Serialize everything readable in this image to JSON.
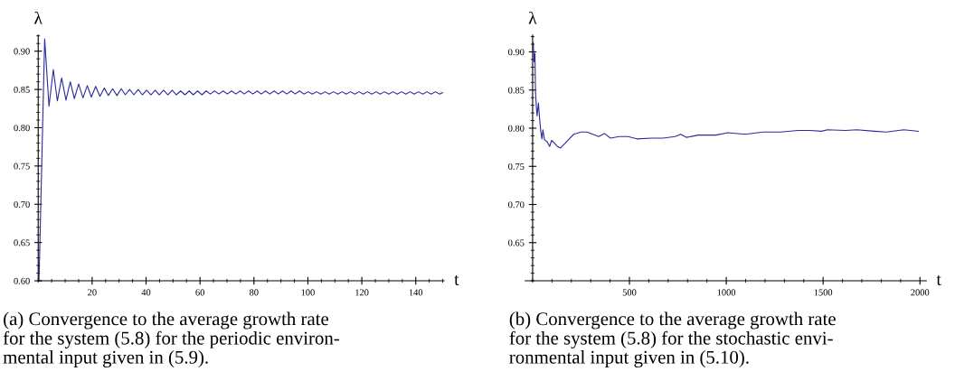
{
  "chart_data": [
    {
      "type": "line",
      "xlabel": "t",
      "ylabel": "λ",
      "xlim": [
        0,
        150.5
      ],
      "ylim": [
        0.6,
        0.921
      ],
      "xticks": [
        20,
        40,
        60,
        80,
        100,
        120,
        140
      ],
      "yticks": [
        {
          "value": 0.6,
          "label": "0.60"
        },
        0.65,
        {
          "value": 0.7,
          "label": "0.70"
        },
        0.75,
        {
          "value": 0.8,
          "label": "0.80"
        },
        0.85,
        {
          "value": 0.9,
          "label": "0.90"
        }
      ],
      "grid": false,
      "legend": false,
      "x": [
        0.3,
        2.4,
        4.0,
        5.6,
        7.1,
        8.7,
        10.3,
        11.9,
        13.4,
        15.0,
        16.6,
        18.2,
        19.7,
        21.3,
        22.9,
        24.5,
        26.0,
        27.6,
        29.2,
        30.8,
        32.3,
        33.9,
        35.5,
        37.1,
        38.6,
        40.2,
        41.8,
        43.4,
        44.9,
        46.5,
        48.1,
        49.7,
        51.2,
        52.8,
        54.4,
        56.0,
        57.5,
        59.1,
        60.7,
        62.3,
        63.8,
        65.4,
        67.0,
        68.6,
        70.1,
        71.7,
        73.3,
        74.9,
        76.4,
        78.0,
        79.6,
        81.2,
        82.7,
        84.3,
        85.9,
        87.5,
        89.0,
        90.6,
        92.2,
        93.8,
        95.3,
        96.9,
        98.5,
        100.1,
        101.6,
        103.2,
        104.8,
        106.4,
        107.9,
        109.5,
        111.1,
        112.7,
        114.2,
        115.8,
        117.4,
        119.0,
        120.5,
        122.1,
        123.7,
        125.3,
        126.8,
        128.4,
        130.0,
        131.6,
        133.1,
        134.7,
        136.3,
        137.9,
        139.4,
        141.0,
        142.6,
        144.2,
        145.7,
        147.3,
        148.9,
        150.0
      ],
      "series": [
        {
          "color": "#2b2b9a",
          "values": [
            0.6,
            0.916,
            0.828,
            0.876,
            0.835,
            0.865,
            0.836,
            0.86,
            0.838,
            0.857,
            0.839,
            0.855,
            0.84,
            0.854,
            0.841,
            0.852,
            0.842,
            0.851,
            0.842,
            0.851,
            0.843,
            0.85,
            0.843,
            0.85,
            0.843,
            0.849,
            0.843,
            0.849,
            0.843,
            0.849,
            0.843,
            0.849,
            0.843,
            0.848,
            0.843,
            0.848,
            0.843,
            0.848,
            0.843,
            0.848,
            0.844,
            0.848,
            0.844,
            0.848,
            0.844,
            0.848,
            0.844,
            0.848,
            0.844,
            0.848,
            0.844,
            0.848,
            0.844,
            0.848,
            0.844,
            0.848,
            0.844,
            0.848,
            0.844,
            0.848,
            0.844,
            0.848,
            0.844,
            0.847,
            0.844,
            0.847,
            0.844,
            0.847,
            0.844,
            0.847,
            0.844,
            0.847,
            0.844,
            0.847,
            0.844,
            0.847,
            0.844,
            0.847,
            0.844,
            0.847,
            0.844,
            0.847,
            0.844,
            0.847,
            0.844,
            0.847,
            0.844,
            0.847,
            0.844,
            0.847,
            0.844,
            0.847,
            0.844,
            0.847,
            0.844,
            0.846
          ]
        }
      ],
      "annotations": [
        "(a) Convergence to the average growth rate\nfor the system (5.8) for the periodic environ-\nmental input given in (5.9)."
      ]
    },
    {
      "type": "line",
      "xlabel": "t",
      "ylabel": "λ",
      "xlim": [
        -38,
        2033
      ],
      "ylim": [
        0.6,
        0.922
      ],
      "xticks": [
        500,
        1000,
        1500,
        2000
      ],
      "yticks": [
        0.65,
        {
          "value": 0.7,
          "label": "0.70"
        },
        0.75,
        {
          "value": 0.8,
          "label": "0.80"
        },
        0.85,
        {
          "value": 0.9,
          "label": "0.90"
        }
      ],
      "grid": false,
      "legend": false,
      "x": [
        3,
        8,
        12,
        15,
        20,
        23,
        30,
        35,
        42,
        48,
        53,
        61,
        76,
        88,
        98,
        114,
        129,
        144,
        167,
        189,
        212,
        250,
        280,
        311,
        341,
        371,
        402,
        447,
        492,
        538,
        614,
        674,
        735,
        765,
        795,
        856,
        947,
        1008,
        1098,
        1189,
        1280,
        1371,
        1432,
        1492,
        1523,
        1614,
        1674,
        1765,
        1826,
        1917,
        1992
      ],
      "series": [
        {
          "color": "#2b2b9a",
          "values": [
            0.912,
            0.887,
            0.898,
            0.847,
            0.826,
            0.816,
            0.833,
            0.816,
            0.796,
            0.786,
            0.798,
            0.785,
            0.782,
            0.776,
            0.784,
            0.78,
            0.776,
            0.774,
            0.78,
            0.786,
            0.792,
            0.795,
            0.795,
            0.792,
            0.789,
            0.793,
            0.787,
            0.789,
            0.789,
            0.786,
            0.787,
            0.787,
            0.789,
            0.792,
            0.788,
            0.791,
            0.791,
            0.794,
            0.792,
            0.795,
            0.795,
            0.797,
            0.797,
            0.796,
            0.798,
            0.797,
            0.798,
            0.796,
            0.795,
            0.798,
            0.796
          ]
        }
      ],
      "annotations": [
        "(b) Convergence to the average growth rate\nfor the system (5.8) for the stochastic envi-\nronmental input given in (5.10)."
      ]
    }
  ]
}
